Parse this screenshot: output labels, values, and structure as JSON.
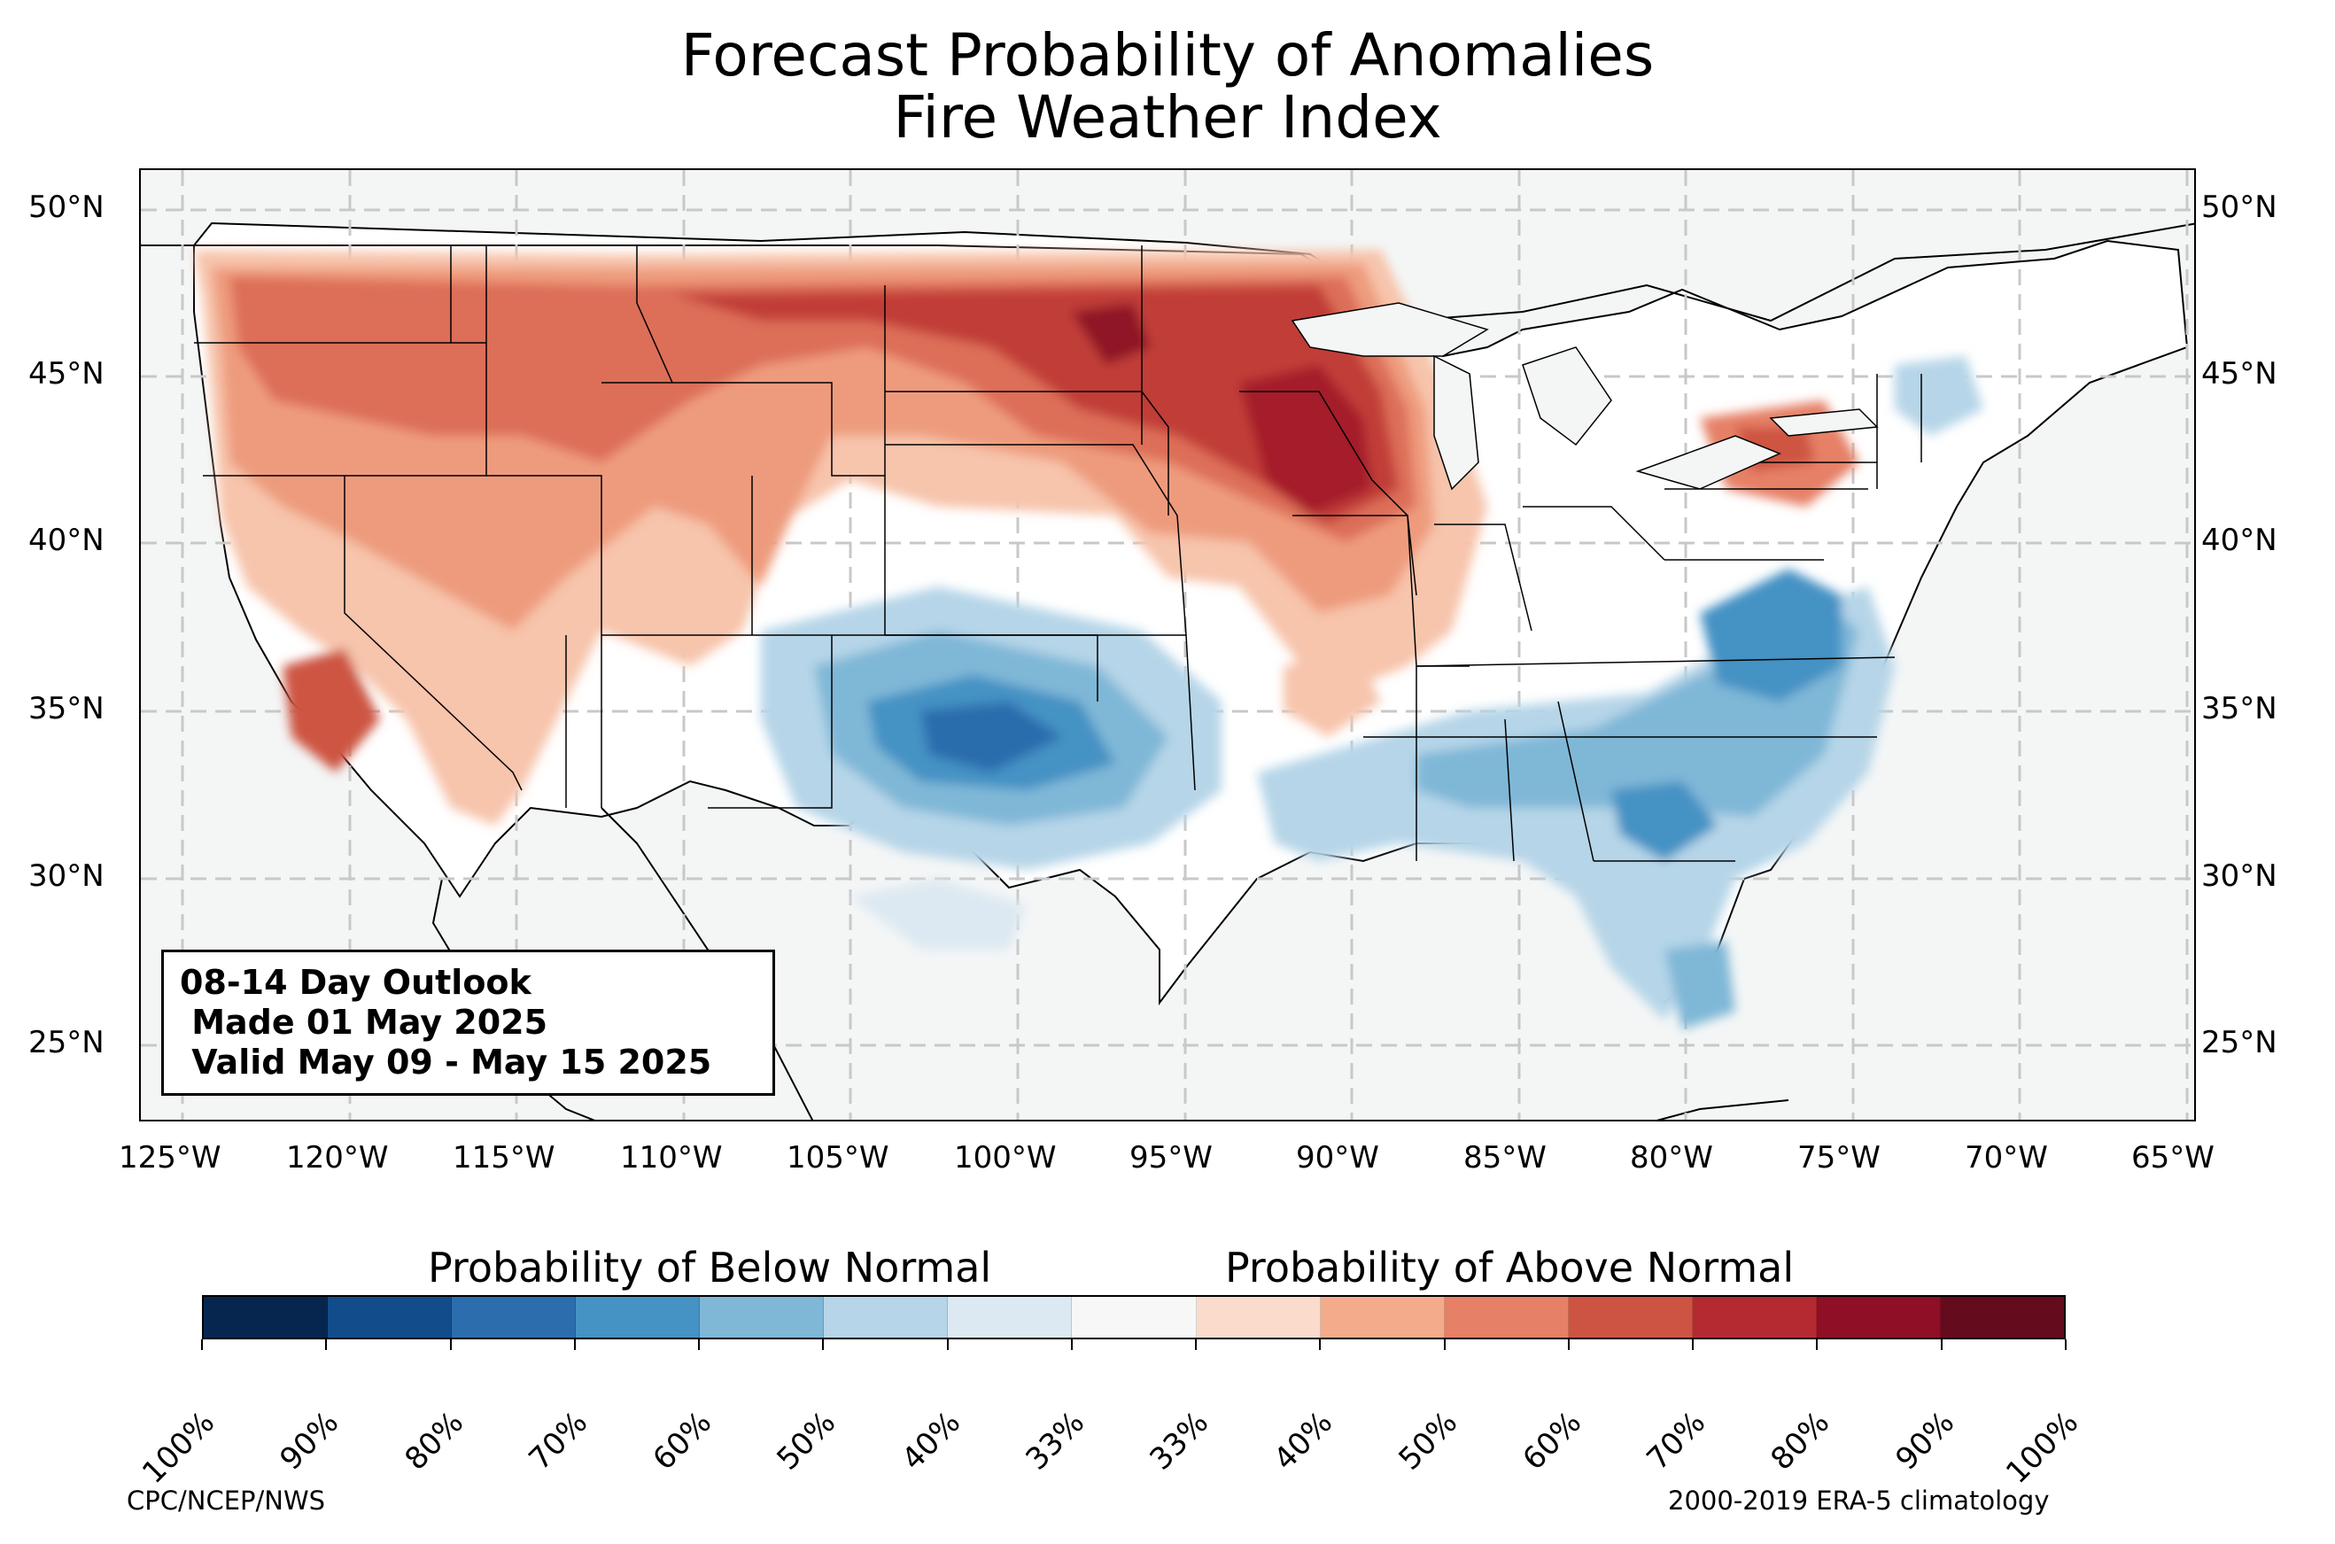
{
  "title": {
    "line1": "Forecast Probability of Anomalies",
    "line2": "Fire Weather Index"
  },
  "lat_ticks": [
    "50°N",
    "45°N",
    "40°N",
    "35°N",
    "30°N",
    "25°N"
  ],
  "lon_ticks": [
    "125°W",
    "120°W",
    "115°W",
    "110°W",
    "105°W",
    "100°W",
    "95°W",
    "90°W",
    "85°W",
    "80°W",
    "75°W",
    "70°W",
    "65°W"
  ],
  "map_extent": {
    "lon_min": -126.2,
    "lon_max": -64.9,
    "lat_min": 22.7,
    "lat_max": 51.2
  },
  "outlook": {
    "line1": "08-14 Day Outlook",
    "line2": " Made 01 May 2025",
    "line3": " Valid May 09 - May 15 2025"
  },
  "colorbar": {
    "below_label": "Probability of Below Normal",
    "above_label": "Probability of Above Normal",
    "colors": [
      "#07264f",
      "#134c8b",
      "#2b6dad",
      "#4592c4",
      "#7fb7d7",
      "#b6d5e8",
      "#dde9f2",
      "#f7f7f7",
      "#fbdbcb",
      "#f4ab8c",
      "#e68066",
      "#cd5443",
      "#b42a30",
      "#8e0f26",
      "#640b1e"
    ],
    "tick_labels": [
      "100%",
      "90%",
      "80%",
      "70%",
      "60%",
      "50%",
      "40%",
      "33%",
      "33%",
      "40%",
      "50%",
      "60%",
      "70%",
      "80%",
      "90%",
      "100%"
    ]
  },
  "footer": {
    "left": "CPC/NCEP/NWS",
    "right": "2000-2019 ERA-5 climatology"
  }
}
